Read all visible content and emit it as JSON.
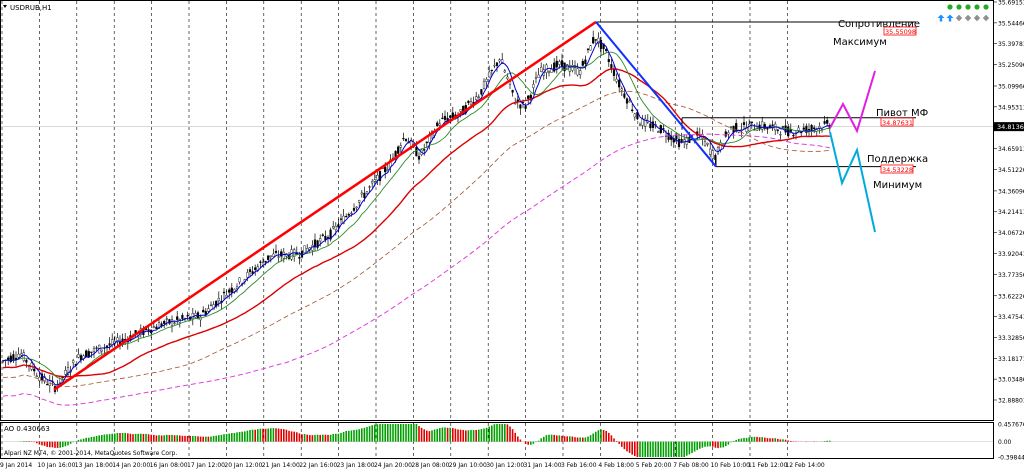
{
  "window": {
    "title": "USDRUB,H1"
  },
  "copyright": "Alpari NZ MT4, © 2001-2014, MetaQuotes Software Corp.",
  "colors": {
    "background": "#ffffff",
    "candles": "#000000",
    "ma_fast": "#0000cc",
    "ma_mid": "#2e8b2e",
    "ma_slow": "#dd0000",
    "ma_dashed": "#a0522d",
    "ma_long": "#e040e0",
    "trend_up": "#ff0000",
    "trend_down": "#1030ff",
    "forecast_up": "#e020e0",
    "forecast_down": "#00aadd",
    "ao_up": "#00a000",
    "ao_down": "#e00000",
    "level_label_bg": "#ff0000"
  },
  "toolbar": {
    "icons": [
      "dot-green-icon",
      "dot-green-icon",
      "dot-green-icon",
      "dot-green-icon",
      "dot-green-icon",
      "arrow-up-icon",
      "arrow-up-icon",
      "diamond-icon",
      "diamond-icon",
      "diamond-icon",
      "diamond-icon"
    ]
  },
  "annotations": {
    "resistance": {
      "label": "Сопротивление",
      "value": "35.55098",
      "y": 35.55098
    },
    "maximum": {
      "label": "Максимум"
    },
    "pivot": {
      "label": "Пивот МФ",
      "value": "34.87631",
      "y": 34.87631
    },
    "support": {
      "label": "Поддержка",
      "value": "34.53228",
      "y": 34.53228
    },
    "minimum": {
      "label": "Минимум"
    }
  },
  "chart_data": [
    {
      "type": "candlestick",
      "title": "USDRUB,H1",
      "ylim": [
        32.88801,
        35.69151
      ],
      "current_price": "34.81363",
      "current_price_value": 34.81363,
      "y_ticks": [
        "35.69151",
        "35.54466",
        "35.39781",
        "35.25096",
        "35.09966",
        "34.95311",
        "34.80646",
        "34.65911",
        "34.51226",
        "34.36096",
        "34.21411",
        "34.06726",
        "33.92041",
        "33.77356",
        "33.62226",
        "33.47541",
        "33.32856",
        "33.18171",
        "33.03486",
        "32.88801"
      ],
      "x_ticks": [
        "9 Jan 2014",
        "10 Jan 16:00",
        "13 Jan 18:00",
        "14 Jan 20:00",
        "16 Jan 08:00",
        "17 Jan 12:00",
        "20 Jan 12:00",
        "21 Jan 14:00",
        "22 Jan 16:00",
        "23 Jan 18:00",
        "24 Jan 20:00",
        "28 Jan 08:00",
        "29 Jan 10:00",
        "30 Jan 12:00",
        "31 Jan 14:00",
        "3 Feb 16:00",
        "4 Feb 18:00",
        "5 Feb 20:00",
        "7 Feb 08:00",
        "10 Feb 10:00",
        "11 Feb 12:00",
        "12 Feb 14:00"
      ],
      "trend_lines": [
        {
          "name": "uptrend",
          "from": [
            "9 Jan 2014",
            32.96
          ],
          "to": [
            "3 Feb 16:00",
            35.55
          ]
        },
        {
          "name": "downtrend",
          "from": [
            "3 Feb 16:00",
            35.55
          ],
          "to": [
            "7 Feb 08:00",
            34.53
          ]
        }
      ]
    },
    {
      "type": "bar",
      "title": "AO 0.430663",
      "ylim": [
        -0.398444,
        0.457676
      ],
      "y_ticks": [
        "0.457676",
        "0.00",
        "-0.398444"
      ]
    }
  ]
}
